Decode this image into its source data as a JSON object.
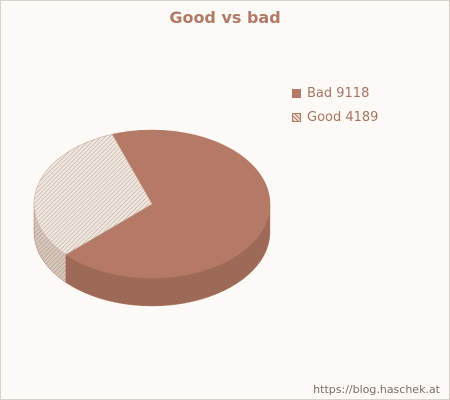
{
  "chart_data": {
    "type": "pie",
    "title": "Good vs bad",
    "slices": [
      {
        "label": "Bad",
        "value": 9118,
        "color": "#b47a66",
        "legend_text": "Bad 9118"
      },
      {
        "label": "Good",
        "value": 4189,
        "color": "#e6dbd2",
        "legend_text": "Good 4189"
      }
    ],
    "style": "3d",
    "legend_position": "right"
  },
  "footer": {
    "credit": "https://blog.haschek.at"
  },
  "colors": {
    "background": "#fdfaf7",
    "accent": "#b47a66"
  }
}
